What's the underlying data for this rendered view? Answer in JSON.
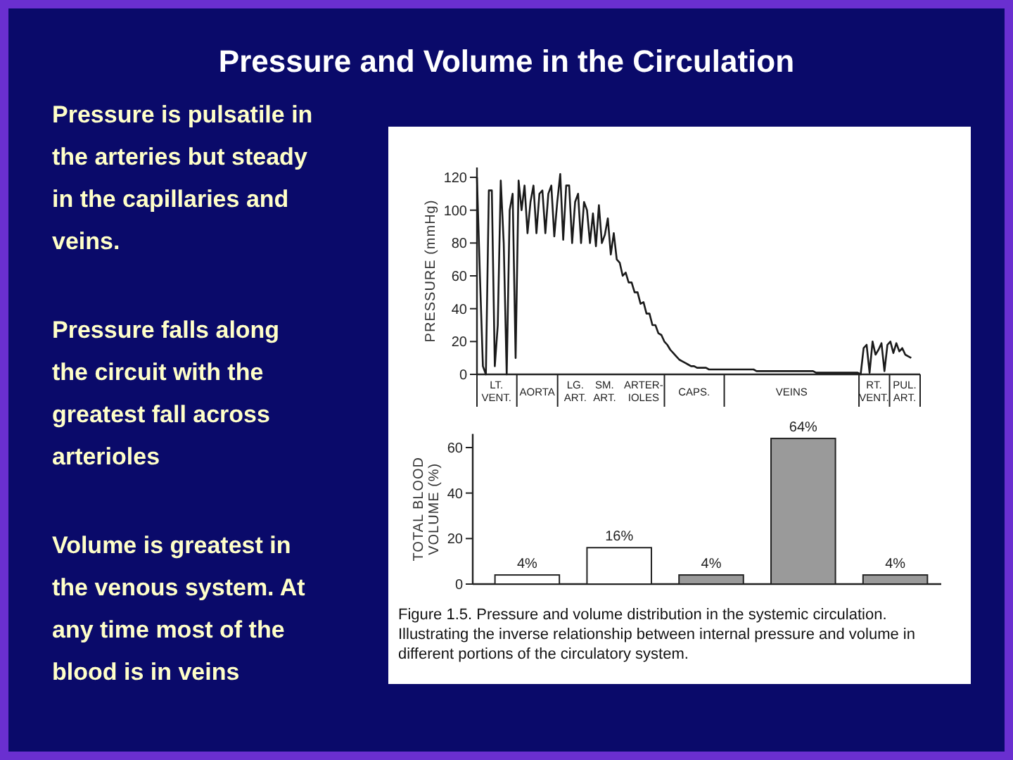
{
  "chart_data": [
    {
      "type": "other",
      "title": "Pressure and Volume in the Circulation",
      "annotations": [
        "Pressure is pulsatile in the arteries but steady in the capillaries and veins.",
        "Pressure falls along the circuit with the greatest fall across arterioles",
        "Volume is greatest in the venous system. At any time most of the blood is in veins"
      ]
    },
    {
      "type": "line",
      "ylabel": "PRESSURE (mmHg)",
      "color": "#1a1a1a",
      "ylim": [
        0,
        126
      ],
      "yticks": [
        0,
        20,
        40,
        60,
        80,
        100,
        120
      ],
      "annotations": [
        "LT.\nVENT.",
        "AORTA",
        "LG.\nART.",
        "SM.\nART.",
        "ARTER-\nIOLES",
        "CAPS.",
        "VEINS",
        "RT.\nVENT.",
        "PUL.\nART."
      ],
      "categories": [
        null,
        null,
        null,
        null,
        null,
        null,
        null,
        null,
        null,
        null,
        null,
        null,
        null,
        null,
        null,
        null,
        null,
        null,
        null,
        null,
        null,
        null,
        null,
        null,
        null,
        null,
        null,
        null,
        null,
        null,
        null,
        null,
        null,
        null,
        null,
        null,
        null,
        null,
        null,
        null,
        null,
        null,
        null,
        null,
        null,
        null,
        null,
        null,
        null,
        null,
        null,
        null,
        null,
        null,
        null,
        null,
        null,
        null,
        null,
        null,
        null,
        null,
        null,
        null,
        null,
        null,
        null,
        null,
        null,
        null,
        null,
        null,
        null,
        null,
        null,
        null,
        null,
        null,
        null,
        null,
        null,
        null,
        null,
        null,
        null,
        null,
        null,
        null,
        null,
        null,
        null,
        null,
        null,
        null,
        null,
        null,
        null,
        null,
        null,
        null,
        null,
        null,
        null,
        null,
        null,
        null,
        null,
        null,
        null,
        null,
        null,
        null,
        null,
        null,
        null,
        null,
        null,
        null,
        null,
        null,
        null,
        null,
        null,
        null,
        null,
        null,
        null,
        null,
        null,
        null,
        null,
        null,
        null,
        null,
        null,
        null,
        null,
        null,
        null,
        null,
        null,
        null,
        null,
        null,
        null,
        null,
        null,
        null,
        null,
        null
      ],
      "values": [
        120,
        60,
        5,
        0,
        112,
        112,
        5,
        30,
        118,
        80,
        0,
        100,
        110,
        10,
        118,
        100,
        115,
        86,
        105,
        115,
        86,
        110,
        112,
        86,
        110,
        115,
        84,
        105,
        122,
        82,
        115,
        115,
        80,
        105,
        110,
        80,
        105,
        100,
        80,
        98,
        78,
        103,
        80,
        85,
        95,
        73,
        86,
        70,
        68,
        60,
        62,
        56,
        56,
        50,
        50,
        43,
        44,
        37,
        37,
        30,
        30,
        25,
        24,
        20,
        18,
        15,
        13,
        11,
        9,
        8,
        7,
        6,
        5,
        5,
        4,
        4,
        4,
        4,
        3,
        3,
        3,
        3,
        3,
        3,
        3,
        3,
        3,
        3,
        3,
        3,
        3,
        3,
        3,
        3,
        2,
        2,
        2,
        2,
        2,
        2,
        2,
        2,
        2,
        2,
        2,
        2,
        2,
        2,
        2,
        2,
        2,
        2,
        2,
        2,
        1,
        1,
        1,
        1,
        1,
        1,
        1,
        1,
        1,
        1,
        1,
        1,
        1,
        1,
        1,
        0,
        16,
        18,
        1,
        20,
        12,
        15,
        19,
        2,
        18,
        20,
        13,
        19,
        14,
        16,
        12,
        11,
        10,
        null,
        null,
        null
      ]
    },
    {
      "type": "bar",
      "ylabel": "TOTAL BLOOD\nVOLUME (%)",
      "categories": [
        null,
        null,
        null,
        null,
        null
      ],
      "values": [
        4,
        16,
        4,
        64,
        4
      ],
      "colors": [
        "#ffffff",
        "#ffffff",
        "#9a9a9a",
        "#9a9a9a",
        "#9a9a9a"
      ],
      "value_labels": [
        "4%",
        "16%",
        "4%",
        "64%",
        "4%"
      ],
      "ylim": [
        0,
        66
      ],
      "yticks": [
        0,
        20,
        40,
        60
      ],
      "annotations": [
        "Figure 1.5. Pressure and volume distribution in the systemic circulation. Illustrating the inverse relationship between internal pressure and volume in different portions of the circulatory system."
      ]
    }
  ]
}
